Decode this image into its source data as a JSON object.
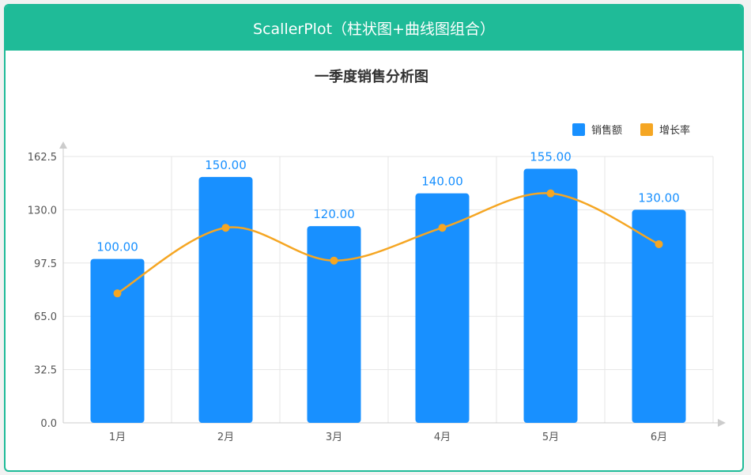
{
  "header": {
    "title": "ScallerPlot（柱状图+曲线图组合）"
  },
  "colors": {
    "header_bg": "#1fbb98",
    "bar": "#1890ff",
    "line": "#f5a623",
    "grid": "#e6e6e6",
    "axis": "#cccccc"
  },
  "chart_data": {
    "type": "bar",
    "title": "一季度销售分析图",
    "xlabel": "",
    "ylabel": "",
    "categories": [
      "1月",
      "2月",
      "3月",
      "4月",
      "5月",
      "6月"
    ],
    "ylim": [
      0,
      162.5
    ],
    "yticks": [
      "0.0",
      "32.5",
      "65.0",
      "97.5",
      "130.0",
      "162.5"
    ],
    "grid": true,
    "legend_position": "top-right",
    "series": [
      {
        "name": "销售额",
        "type": "bar",
        "values": [
          100,
          150,
          120,
          140,
          155,
          130
        ],
        "labels": [
          "100.00",
          "150.00",
          "120.00",
          "140.00",
          "155.00",
          "130.00"
        ]
      },
      {
        "name": "增长率",
        "type": "line",
        "smooth": true,
        "values": [
          79,
          119,
          99,
          119,
          140,
          109
        ]
      }
    ]
  }
}
